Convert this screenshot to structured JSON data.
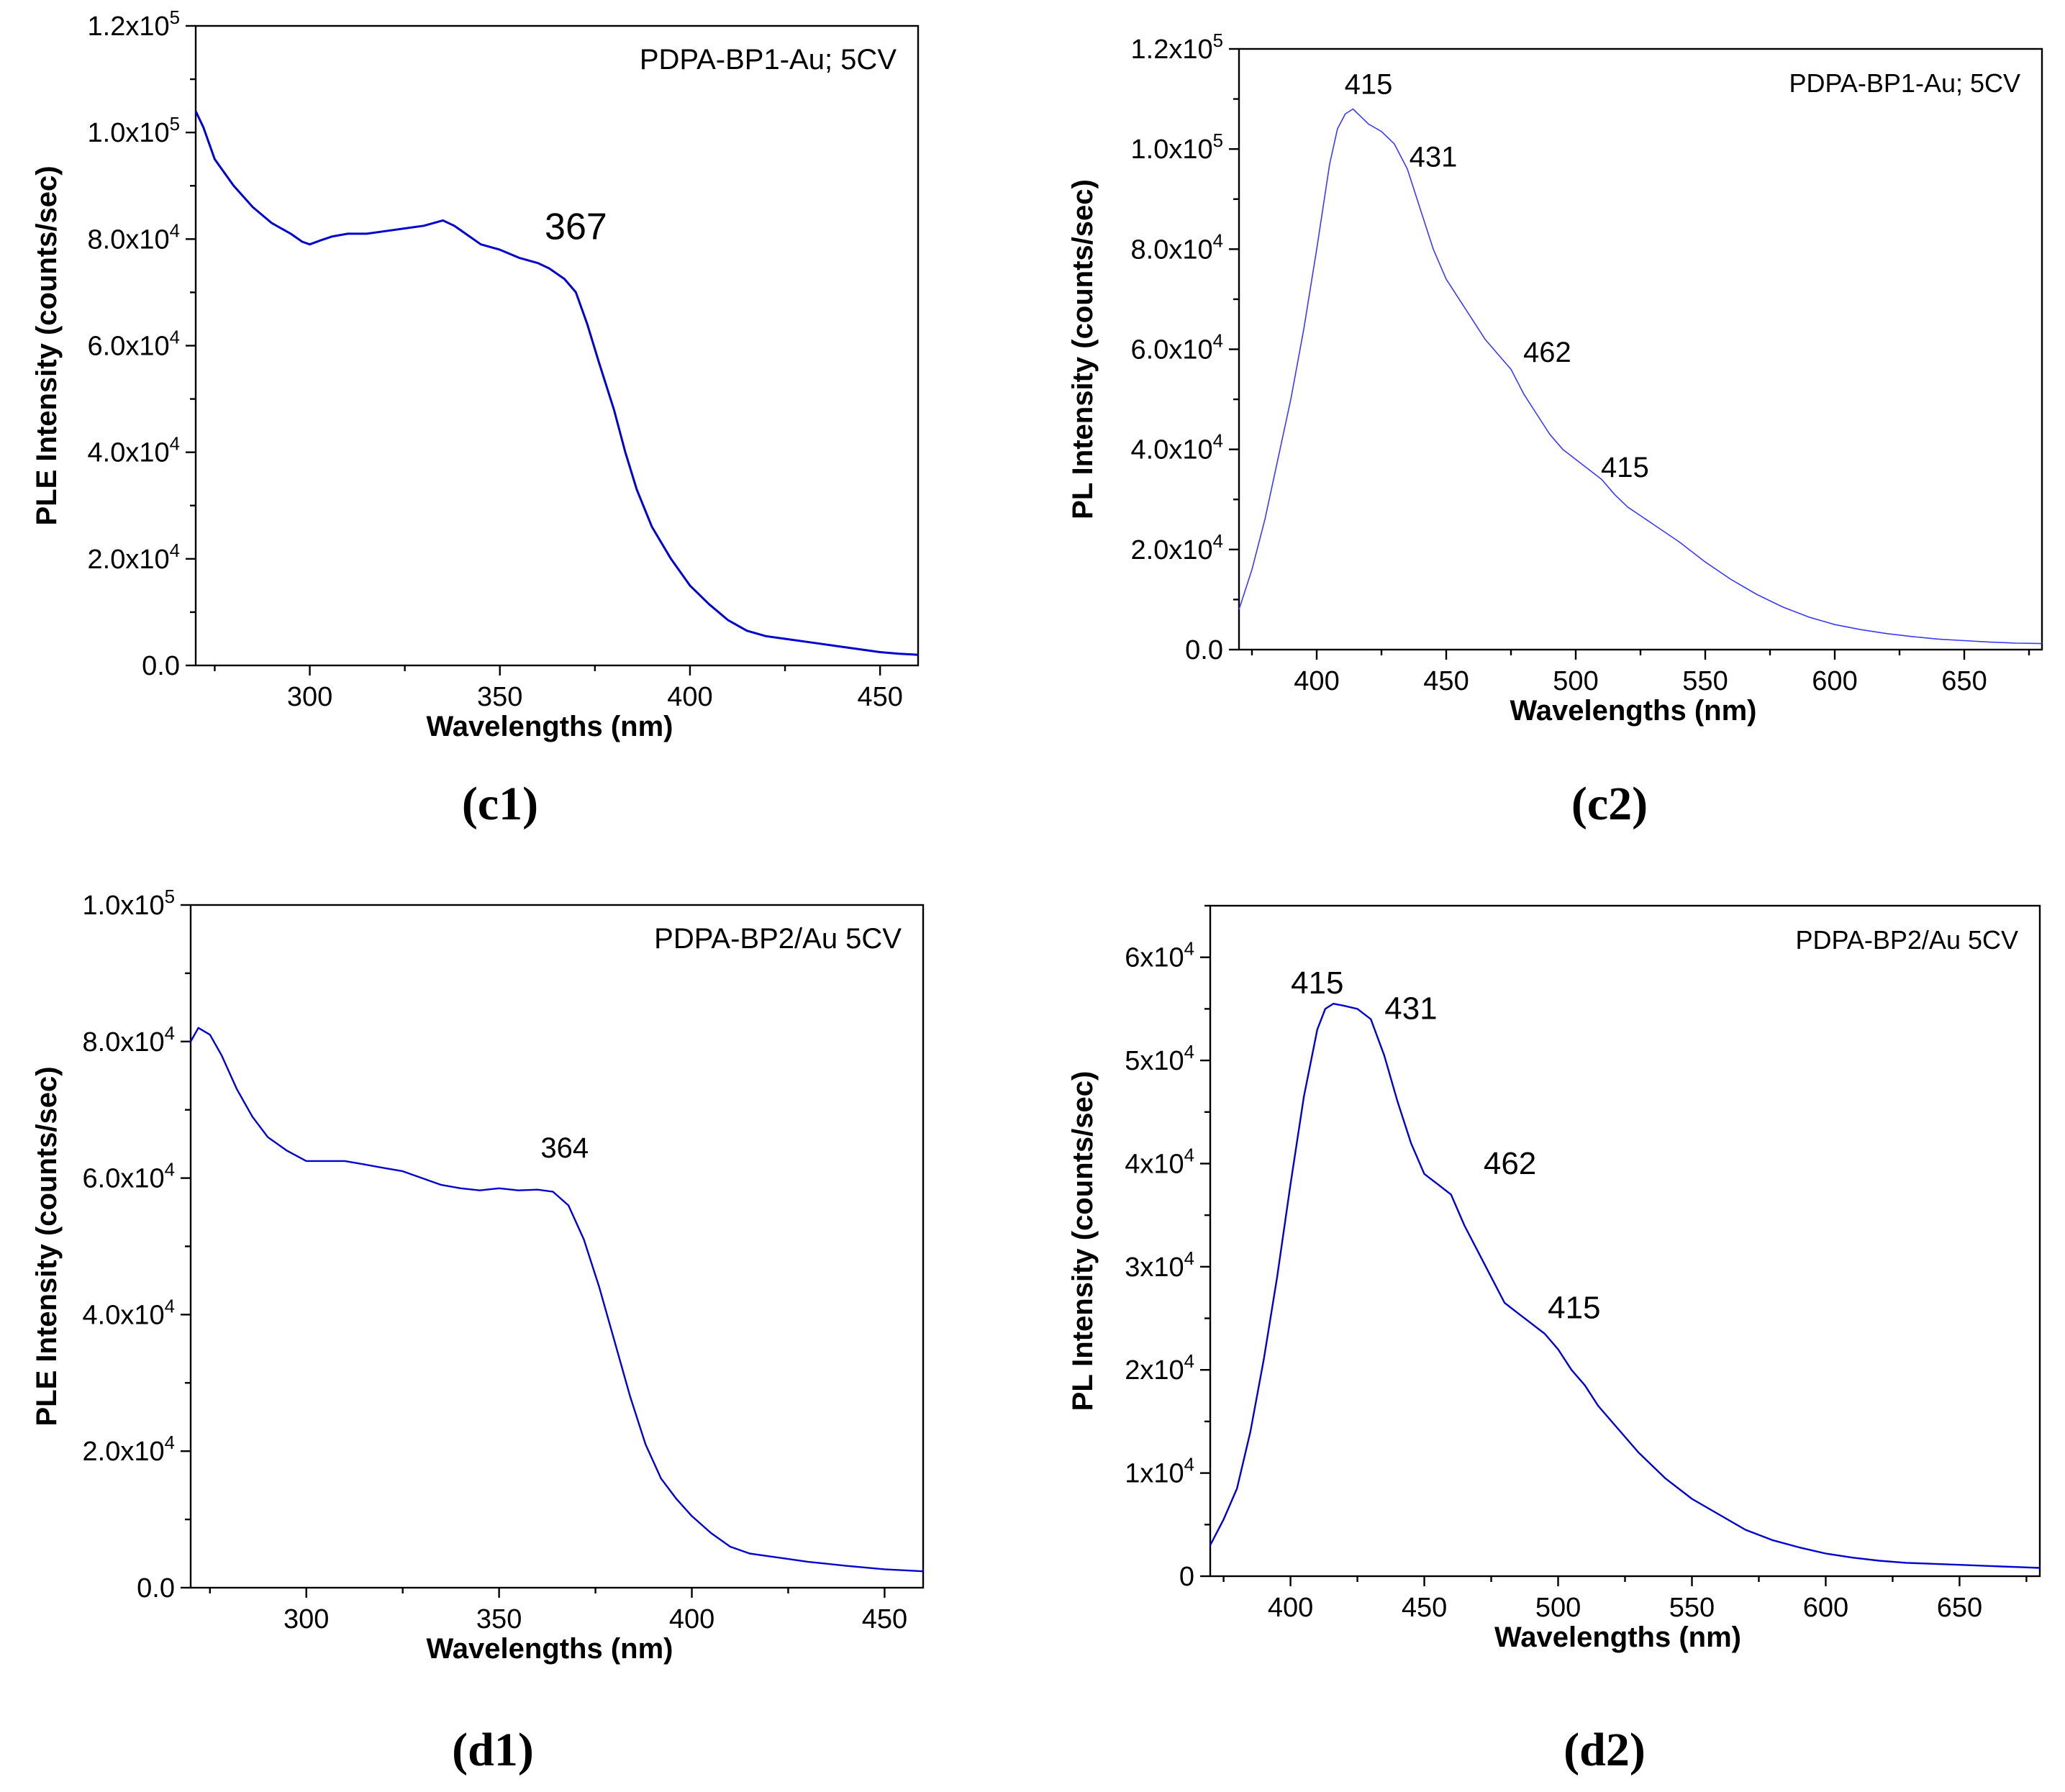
{
  "chart_data": [
    {
      "type": "line",
      "panel_label": "(c1)",
      "legend_text": "PDPA-BP1-Au; 5CV",
      "xlabel": "Wavelengths (nm)",
      "ylabel": "PLE Intensity (counts/sec)",
      "xlim": [
        270,
        460
      ],
      "ylim": [
        0,
        120000
      ],
      "xticks": [
        300,
        350,
        400,
        450
      ],
      "yticks": [
        {
          "value": 0,
          "base": "0.0",
          "exp": ""
        },
        {
          "value": 20000,
          "base": "2.0x10",
          "exp": "4"
        },
        {
          "value": 40000,
          "base": "4.0x10",
          "exp": "4"
        },
        {
          "value": 60000,
          "base": "6.0x10",
          "exp": "4"
        },
        {
          "value": 80000,
          "base": "8.0x10",
          "exp": "4"
        },
        {
          "value": 100000,
          "base": "1.0x10",
          "exp": "5"
        },
        {
          "value": 120000,
          "base": "1.2x10",
          "exp": "5"
        }
      ],
      "annotations": [
        {
          "text": "367",
          "x": 370,
          "y": 80000
        }
      ],
      "series": [
        {
          "name": "PDPA-BP1-Au; 5CV",
          "color": "#0000d0",
          "stroke": 3,
          "x": [
            270,
            272,
            275,
            280,
            285,
            290,
            295,
            298,
            300,
            303,
            306,
            310,
            315,
            320,
            325,
            330,
            335,
            338,
            342,
            345,
            350,
            355,
            360,
            363,
            367,
            370,
            373,
            376,
            380,
            383,
            386,
            390,
            395,
            400,
            405,
            410,
            415,
            420,
            425,
            430,
            440,
            450,
            455,
            460
          ],
          "y": [
            104000,
            101000,
            95000,
            90000,
            86000,
            83000,
            81000,
            79500,
            79000,
            79800,
            80500,
            81000,
            81000,
            81500,
            82000,
            82500,
            83500,
            82500,
            80500,
            79000,
            78000,
            76500,
            75500,
            74500,
            72500,
            70000,
            64000,
            57000,
            48000,
            40000,
            33000,
            26000,
            20000,
            15000,
            11500,
            8500,
            6500,
            5500,
            5000,
            4500,
            3500,
            2500,
            2200,
            2000
          ]
        }
      ]
    },
    {
      "type": "line",
      "panel_label": "(c2)",
      "legend_text": "PDPA-BP1-Au; 5CV",
      "xlabel": "Wavelengths (nm)",
      "ylabel": "PL Intensity (counts/sec)",
      "xlim": [
        370,
        680
      ],
      "ylim": [
        0,
        120000
      ],
      "xticks": [
        400,
        450,
        500,
        550,
        600,
        650
      ],
      "yticks": [
        {
          "value": 0,
          "base": "0.0",
          "exp": ""
        },
        {
          "value": 20000,
          "base": "2.0x10",
          "exp": "4"
        },
        {
          "value": 40000,
          "base": "4.0x10",
          "exp": "4"
        },
        {
          "value": 60000,
          "base": "6.0x10",
          "exp": "4"
        },
        {
          "value": 80000,
          "base": "8.0x10",
          "exp": "4"
        },
        {
          "value": 100000,
          "base": "1.0x10",
          "exp": "5"
        },
        {
          "value": 120000,
          "base": "1.2x10",
          "exp": "5"
        }
      ],
      "annotations": [
        {
          "text": "415",
          "x": 420,
          "y": 111000
        },
        {
          "text": "431",
          "x": 445,
          "y": 96500
        },
        {
          "text": "462",
          "x": 489,
          "y": 57500
        },
        {
          "text": "415",
          "x": 519,
          "y": 34500
        }
      ],
      "series": [
        {
          "name": "PDPA-BP1-Au; 5CV",
          "color": "#3a3aff",
          "stroke": 1.6,
          "x": [
            370,
            375,
            380,
            385,
            390,
            395,
            400,
            405,
            408,
            411,
            414,
            417,
            420,
            425,
            430,
            435,
            440,
            445,
            450,
            455,
            460,
            465,
            470,
            475,
            480,
            485,
            490,
            495,
            500,
            505,
            510,
            515,
            520,
            530,
            540,
            550,
            560,
            570,
            580,
            590,
            600,
            610,
            620,
            630,
            640,
            650,
            660,
            670,
            680
          ],
          "y": [
            8000,
            16000,
            26000,
            38000,
            50000,
            64000,
            80000,
            97000,
            104000,
            107000,
            108000,
            106500,
            105000,
            103500,
            101000,
            96000,
            88000,
            80000,
            74000,
            70000,
            66000,
            62000,
            59000,
            56000,
            51000,
            47000,
            43000,
            40000,
            38000,
            36000,
            34000,
            31000,
            28500,
            25000,
            21500,
            17500,
            14000,
            11000,
            8500,
            6500,
            5000,
            4000,
            3200,
            2600,
            2100,
            1800,
            1500,
            1300,
            1200
          ]
        }
      ]
    },
    {
      "type": "line",
      "panel_label": "(d1)",
      "legend_text": "PDPA-BP2/Au 5CV",
      "xlabel": "Wavelengths (nm)",
      "ylabel": "PLE Intensity (counts/sec)",
      "xlim": [
        270,
        460
      ],
      "ylim": [
        0,
        100000
      ],
      "xticks": [
        300,
        350,
        400,
        450
      ],
      "yticks": [
        {
          "value": 0,
          "base": "0.0",
          "exp": ""
        },
        {
          "value": 20000,
          "base": "2.0x10",
          "exp": "4"
        },
        {
          "value": 40000,
          "base": "4.0x10",
          "exp": "4"
        },
        {
          "value": 60000,
          "base": "6.0x10",
          "exp": "4"
        },
        {
          "value": 80000,
          "base": "8.0x10",
          "exp": "4"
        },
        {
          "value": 100000,
          "base": "1.0x10",
          "exp": "5"
        }
      ],
      "annotations": [
        {
          "text": "364",
          "x": 367,
          "y": 63000
        }
      ],
      "series": [
        {
          "name": "PDPA-BP2/Au 5CV",
          "color": "#0000d0",
          "stroke": 2.4,
          "x": [
            270,
            272,
            275,
            278,
            282,
            286,
            290,
            295,
            300,
            305,
            310,
            315,
            320,
            325,
            330,
            335,
            340,
            345,
            350,
            355,
            360,
            364,
            368,
            372,
            376,
            380,
            384,
            388,
            392,
            396,
            400,
            405,
            410,
            415,
            420,
            425,
            430,
            440,
            450,
            460
          ],
          "y": [
            80000,
            82000,
            81000,
            78000,
            73000,
            69000,
            66000,
            64000,
            62500,
            62500,
            62500,
            62000,
            61500,
            61000,
            60000,
            59000,
            58500,
            58200,
            58500,
            58200,
            58300,
            58000,
            56000,
            51000,
            44000,
            36000,
            28000,
            21000,
            16000,
            13000,
            10500,
            8000,
            6000,
            5000,
            4600,
            4200,
            3800,
            3200,
            2700,
            2400
          ]
        }
      ]
    },
    {
      "type": "line",
      "panel_label": "(d2)",
      "legend_text": "PDPA-BP2/Au 5CV",
      "xlabel": "Wavelengths (nm)",
      "ylabel": "PL Intensity (counts/sec)",
      "xlim": [
        370,
        680
      ],
      "ylim": [
        0,
        65000
      ],
      "xticks": [
        400,
        450,
        500,
        550,
        600,
        650
      ],
      "yticks": [
        {
          "value": 0,
          "base": "0",
          "exp": ""
        },
        {
          "value": 10000,
          "base": "1x10",
          "exp": "4"
        },
        {
          "value": 20000,
          "base": "2x10",
          "exp": "4"
        },
        {
          "value": 30000,
          "base": "3x10",
          "exp": "4"
        },
        {
          "value": 40000,
          "base": "4x10",
          "exp": "4"
        },
        {
          "value": 50000,
          "base": "5x10",
          "exp": "4"
        },
        {
          "value": 60000,
          "base": "6x10",
          "exp": "4"
        }
      ],
      "annotations": [
        {
          "text": "415",
          "x": 410,
          "y": 56500
        },
        {
          "text": "431",
          "x": 445,
          "y": 54000
        },
        {
          "text": "462",
          "x": 482,
          "y": 39000
        },
        {
          "text": "415",
          "x": 506,
          "y": 25000
        }
      ],
      "series": [
        {
          "name": "PDPA-BP2/Au 5CV",
          "color": "#0000d0",
          "stroke": 2.4,
          "x": [
            370,
            375,
            380,
            385,
            390,
            395,
            400,
            405,
            410,
            413,
            416,
            420,
            425,
            430,
            435,
            440,
            445,
            450,
            455,
            460,
            465,
            470,
            475,
            480,
            485,
            490,
            495,
            500,
            505,
            510,
            515,
            520,
            530,
            540,
            550,
            560,
            570,
            580,
            590,
            600,
            610,
            620,
            630,
            640,
            650,
            660,
            670,
            680
          ],
          "y": [
            3000,
            5500,
            8500,
            14000,
            21000,
            29000,
            38000,
            46500,
            53000,
            55000,
            55500,
            55300,
            55000,
            54000,
            50500,
            46000,
            42000,
            39000,
            38000,
            37000,
            34000,
            31500,
            29000,
            26500,
            25500,
            24500,
            23500,
            22000,
            20000,
            18500,
            16500,
            15000,
            12000,
            9500,
            7500,
            6000,
            4500,
            3500,
            2800,
            2200,
            1800,
            1500,
            1300,
            1200,
            1100,
            1000,
            900,
            800
          ]
        }
      ]
    }
  ]
}
